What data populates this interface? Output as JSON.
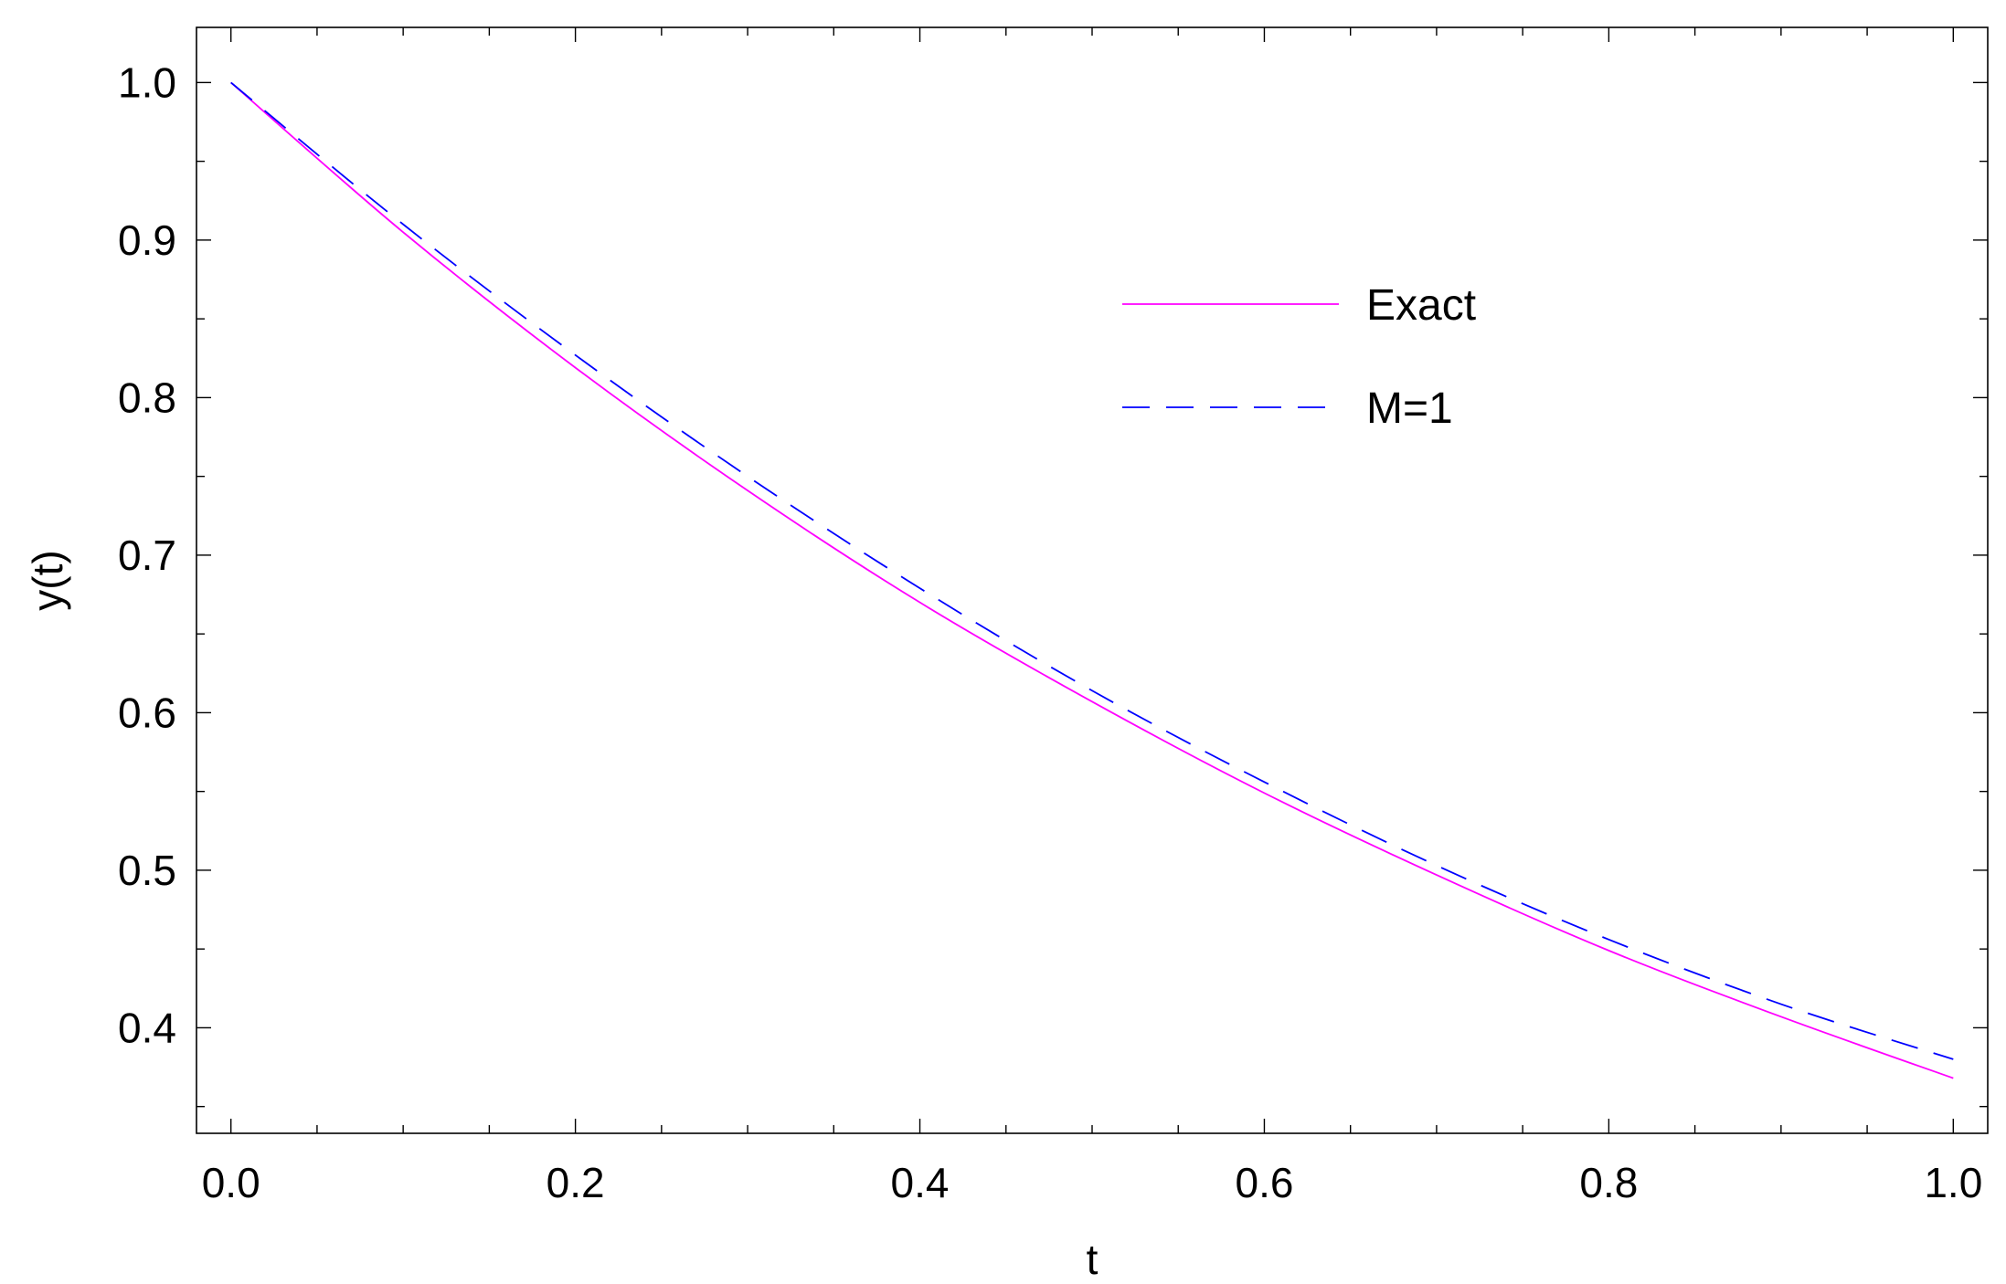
{
  "chart_data": {
    "type": "line",
    "title": "",
    "xlabel": "t",
    "ylabel": "y(t)",
    "xlim": [
      -0.02,
      1.02
    ],
    "ylim": [
      0.333,
      1.035
    ],
    "x_ticks": [
      0.0,
      0.2,
      0.4,
      0.6,
      0.8,
      1.0
    ],
    "x_tick_labels": [
      "0.0",
      "0.2",
      "0.4",
      "0.6",
      "0.8",
      "1.0"
    ],
    "y_ticks": [
      0.4,
      0.5,
      0.6,
      0.7,
      0.8,
      0.9,
      1.0
    ],
    "y_tick_labels": [
      "0.4",
      "0.5",
      "0.6",
      "0.7",
      "0.8",
      "0.9",
      "1.0"
    ],
    "x_minor_step": 0.05,
    "y_minor_step": 0.05,
    "grid": false,
    "legend_position": "upper-right-center",
    "series": [
      {
        "name": "Exact",
        "color": "#ff00ff",
        "dash": "solid",
        "x": [
          0.0,
          0.1,
          0.2,
          0.3,
          0.4,
          0.5,
          0.6,
          0.7,
          0.8,
          0.9,
          1.0
        ],
        "y": [
          1.0,
          0.905,
          0.819,
          0.741,
          0.67,
          0.607,
          0.549,
          0.497,
          0.449,
          0.407,
          0.368
        ]
      },
      {
        "name": "M=1",
        "color": "#0000ff",
        "dash": "dashed",
        "x": [
          0.0,
          0.1,
          0.2,
          0.3,
          0.4,
          0.5,
          0.6,
          0.7,
          0.8,
          0.9,
          1.0
        ],
        "y": [
          1.0,
          0.91,
          0.827,
          0.75,
          0.679,
          0.614,
          0.556,
          0.503,
          0.456,
          0.415,
          0.38
        ]
      }
    ]
  }
}
